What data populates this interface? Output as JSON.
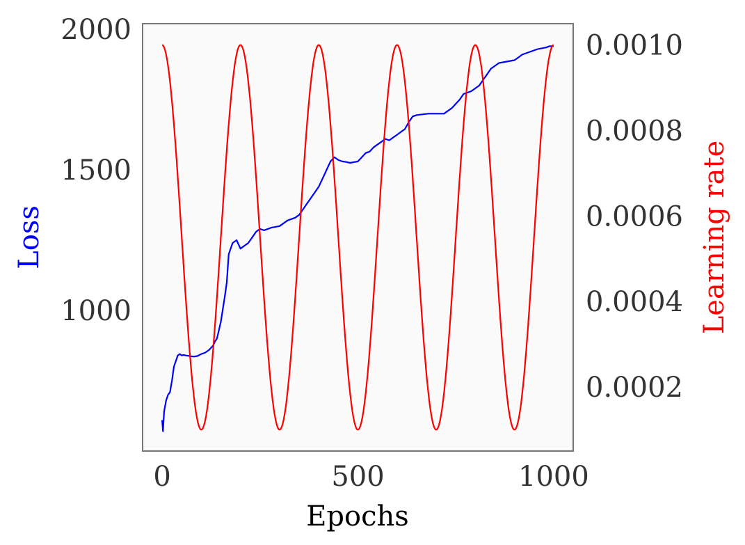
{
  "chart_data": {
    "type": "line",
    "title": "",
    "xlabel": "Epochs",
    "ylabel_left": "Loss",
    "ylabel_right": "Learning rate",
    "xlim": [
      -50,
      1050
    ],
    "ylim_left": [
      500,
      2020
    ],
    "ylim_right": [
      5e-05,
      0.00105
    ],
    "xticks": [
      0,
      500,
      1000
    ],
    "xtick_labels": [
      "0",
      "500",
      "1000"
    ],
    "yticks_left": [
      1000,
      1500,
      2000
    ],
    "ytick_labels_left": [
      "1000",
      "1500",
      "2000"
    ],
    "yticks_right": [
      0.0002,
      0.0004,
      0.0006,
      0.0008,
      0.001
    ],
    "ytick_labels_right": [
      "0.0002",
      "0.0004",
      "0.0006",
      "0.0008",
      "0.0010"
    ],
    "grid": false,
    "colors": {
      "loss": "#0000ff",
      "learning_rate": "#ff0000",
      "plot_bg": "#fafafa",
      "frame": "#777777"
    },
    "series": [
      {
        "axis": "left",
        "color": "#0000ff",
        "x": [
          0,
          2,
          5,
          10,
          15,
          20,
          25,
          30,
          35,
          40,
          45,
          50,
          55,
          60,
          70,
          80,
          90,
          100,
          110,
          120,
          130,
          135,
          140,
          150,
          160,
          165,
          170,
          180,
          190,
          200,
          210,
          220,
          230,
          240,
          250,
          260,
          270,
          280,
          300,
          320,
          340,
          350,
          360,
          370,
          380,
          390,
          400,
          410,
          420,
          430,
          440,
          450,
          460,
          470,
          480,
          500,
          510,
          520,
          530,
          540,
          550,
          560,
          570,
          580,
          590,
          600,
          610,
          620,
          630,
          640,
          650,
          680,
          720,
          740,
          760,
          770,
          780,
          790,
          800,
          810,
          820,
          830,
          840,
          850,
          860,
          880,
          900,
          910,
          920,
          940,
          960,
          980,
          990,
          1000
        ],
        "y": [
          610,
          570,
          640,
          680,
          700,
          710,
          750,
          800,
          820,
          840,
          845,
          840,
          842,
          840,
          838,
          836,
          838,
          845,
          850,
          860,
          875,
          890,
          900,
          960,
          1050,
          1100,
          1200,
          1240,
          1250,
          1220,
          1230,
          1240,
          1260,
          1280,
          1290,
          1285,
          1290,
          1295,
          1300,
          1320,
          1330,
          1340,
          1360,
          1380,
          1400,
          1420,
          1440,
          1470,
          1500,
          1530,
          1545,
          1535,
          1530,
          1528,
          1525,
          1530,
          1545,
          1560,
          1565,
          1580,
          1590,
          1600,
          1610,
          1605,
          1615,
          1625,
          1635,
          1645,
          1670,
          1690,
          1695,
          1700,
          1700,
          1720,
          1750,
          1770,
          1775,
          1780,
          1790,
          1800,
          1820,
          1840,
          1860,
          1870,
          1880,
          1885,
          1890,
          1900,
          1910,
          1920,
          1930,
          1935,
          1940,
          1940
        ]
      },
      {
        "axis": "right",
        "color": "#ff0000",
        "function": "cosine_annealing_warm_restarts",
        "period": 200,
        "lr_max": 0.001,
        "lr_min": 0.0001,
        "x_range": [
          0,
          1000
        ]
      }
    ]
  }
}
